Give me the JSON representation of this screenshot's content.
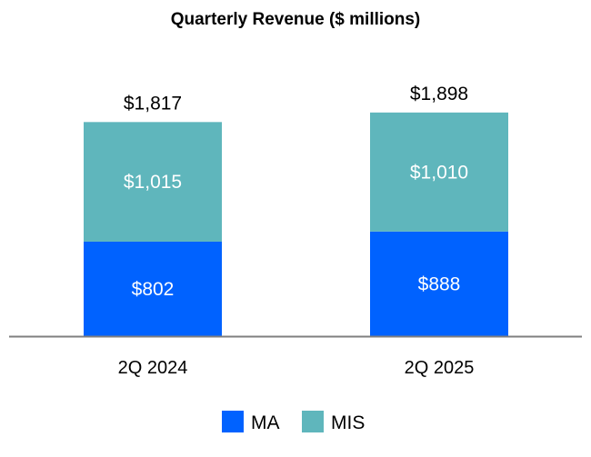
{
  "chart_data": {
    "type": "bar",
    "stacked": true,
    "title": "Quarterly Revenue ($ millions)",
    "categories": [
      "2Q 2024",
      "2Q 2025"
    ],
    "series": [
      {
        "name": "MA",
        "values": [
          802,
          888
        ],
        "labels": [
          "$802",
          "$888"
        ],
        "color": "#0062ff"
      },
      {
        "name": "MIS",
        "values": [
          1015,
          1010
        ],
        "labels": [
          "$1,015",
          "$1,010"
        ],
        "color": "#5fb6bc"
      }
    ],
    "totals": [
      1817,
      1898
    ],
    "total_labels": [
      "$1,817",
      "$1,898"
    ],
    "xlabel": "",
    "ylabel": "",
    "grid": false,
    "legend": "bottom"
  }
}
